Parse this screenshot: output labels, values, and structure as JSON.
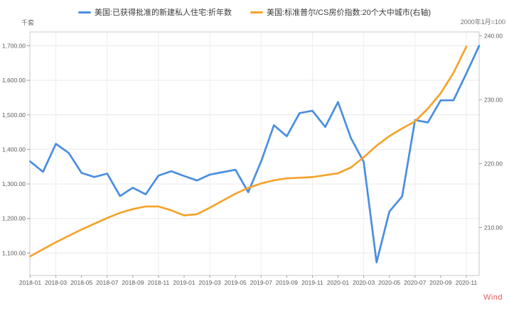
{
  "legend": [
    {
      "label": "美国:已获得批准的新建私人住宅:折年数",
      "color": "#4a8ee0"
    },
    {
      "label": "美国:标准普尔/CS房价指数:20个大中城市(右轴)",
      "color": "#f5a32c"
    }
  ],
  "axes": {
    "left_unit": "千套",
    "right_unit": "2000年1月=100",
    "left_ticks": [
      {
        "value": 1100,
        "label": "1,100.00"
      },
      {
        "value": 1200,
        "label": "1,200.00"
      },
      {
        "value": 1300,
        "label": "1,300.00"
      },
      {
        "value": 1400,
        "label": "1,400.00"
      },
      {
        "value": 1500,
        "label": "1,500.00"
      },
      {
        "value": 1600,
        "label": "1,600.00"
      },
      {
        "value": 1700,
        "label": "1,700.00"
      }
    ],
    "right_ticks": [
      {
        "value": 210,
        "label": "210.00"
      },
      {
        "value": 220,
        "label": "220.00"
      },
      {
        "value": 230,
        "label": "230.00"
      },
      {
        "value": 240,
        "label": "240.00"
      }
    ],
    "x_tick_labels": [
      "2018-01",
      "2018-03",
      "2018-05",
      "2018-07",
      "2018-09",
      "2018-11",
      "2019-01",
      "2019-03",
      "2019-05",
      "2019-07",
      "2019-09",
      "2019-11",
      "2020-01",
      "2020-03",
      "2020-05",
      "2020-07",
      "2020-09",
      "2020-11"
    ]
  },
  "chart_data": {
    "type": "line",
    "x": [
      "2018-01",
      "2018-02",
      "2018-03",
      "2018-04",
      "2018-05",
      "2018-06",
      "2018-07",
      "2018-08",
      "2018-09",
      "2018-10",
      "2018-11",
      "2018-12",
      "2019-01",
      "2019-02",
      "2019-03",
      "2019-04",
      "2019-05",
      "2019-06",
      "2019-07",
      "2019-08",
      "2019-09",
      "2019-10",
      "2019-11",
      "2019-12",
      "2020-01",
      "2020-02",
      "2020-03",
      "2020-04",
      "2020-05",
      "2020-06",
      "2020-07",
      "2020-08",
      "2020-09",
      "2020-10",
      "2020-11",
      "2020-12"
    ],
    "series": [
      {
        "name": "美国:已获得批准的新建私人住宅:折年数",
        "axis": "left",
        "color": "#4a8ee0",
        "values": [
          1365,
          1335,
          1416,
          1390,
          1332,
          1320,
          1330,
          1265,
          1289,
          1270,
          1324,
          1337,
          1323,
          1310,
          1327,
          1334,
          1341,
          1276,
          1365,
          1470,
          1438,
          1505,
          1512,
          1465,
          1537,
          1433,
          1364,
          1073,
          1220,
          1264,
          1485,
          1478,
          1542,
          1542,
          1620,
          1700
        ]
      },
      {
        "name": "美国:标准普尔/CS房价指数:20个大中城市(右轴)",
        "axis": "right",
        "color": "#f5a32c",
        "values": [
          205.5,
          206.6,
          207.7,
          208.7,
          209.7,
          210.6,
          211.5,
          212.3,
          212.9,
          213.3,
          213.3,
          212.7,
          211.9,
          212.1,
          213.1,
          214.2,
          215.3,
          216.2,
          216.9,
          217.4,
          217.7,
          217.8,
          217.9,
          218.2,
          218.5,
          219.4,
          221.0,
          222.8,
          224.3,
          225.5,
          226.6,
          228.6,
          231.0,
          234.2,
          238.3,
          null
        ]
      }
    ],
    "title": "",
    "xlabel": "",
    "ylabel_left": "千套",
    "ylabel_right": "2000年1月=100",
    "ylim_left": [
      1035,
      1740
    ],
    "ylim_right": [
      202.5,
      240.6
    ],
    "grid": "horizontal-major, vertical-every-4-months",
    "legend_position": "top"
  },
  "watermark": "Wind"
}
